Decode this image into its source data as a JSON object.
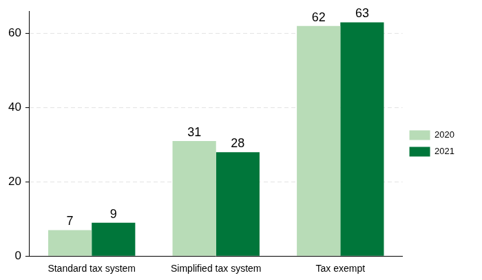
{
  "chart_data": {
    "type": "bar",
    "categories": [
      "Standard tax system",
      "Simplified tax system",
      "Tax exempt"
    ],
    "series": [
      {
        "name": "2020",
        "color": "#b8dcb7",
        "values": [
          7,
          31,
          62
        ]
      },
      {
        "name": "2021",
        "color": "#00763a",
        "values": [
          9,
          28,
          63
        ]
      }
    ],
    "ylim": [
      0,
      66
    ],
    "yticks": [
      0,
      20,
      40,
      60
    ],
    "grid": true,
    "legend": "right",
    "data_labels": true
  }
}
